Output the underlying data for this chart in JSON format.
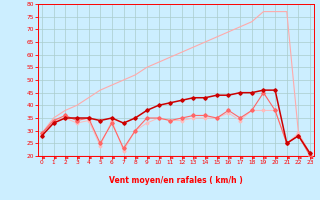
{
  "xlabel": "Vent moyen/en rafales ( km/h )",
  "bg_color": "#cceeff",
  "grid_color": "#aacccc",
  "x": [
    0,
    1,
    2,
    3,
    4,
    5,
    6,
    7,
    8,
    9,
    10,
    11,
    12,
    13,
    14,
    15,
    16,
    17,
    18,
    19,
    20,
    21,
    22,
    23
  ],
  "line_gust_y": [
    29,
    35,
    38,
    40,
    43,
    46,
    48,
    50,
    52,
    55,
    57,
    59,
    61,
    63,
    65,
    67,
    69,
    71,
    73,
    77,
    77,
    77,
    29,
    21
  ],
  "line_mean_y": [
    28,
    33,
    35,
    35,
    35,
    34,
    35,
    33,
    35,
    38,
    40,
    41,
    42,
    43,
    43,
    44,
    44,
    45,
    45,
    46,
    46,
    25,
    28,
    21
  ],
  "line_min_y": [
    29,
    34,
    36,
    34,
    35,
    25,
    33,
    23,
    30,
    35,
    35,
    34,
    35,
    36,
    36,
    35,
    38,
    35,
    38,
    45,
    38,
    25,
    28,
    20
  ],
  "line_extra_y": [
    29,
    34,
    35,
    33,
    34,
    24,
    34,
    22,
    30,
    33,
    35,
    34,
    34,
    35,
    35,
    35,
    37,
    34,
    38,
    38,
    38,
    25,
    29,
    20
  ],
  "line_gust_color": "#ffaaaa",
  "line_mean_color": "#cc0000",
  "line_min_color": "#ff6666",
  "line_extra_color": "#ffbbbb",
  "ylim_min": 20,
  "ylim_max": 80,
  "yticks": [
    20,
    25,
    30,
    35,
    40,
    45,
    50,
    55,
    60,
    65,
    70,
    75,
    80
  ],
  "xticks": [
    0,
    1,
    2,
    3,
    4,
    5,
    6,
    7,
    8,
    9,
    10,
    11,
    12,
    13,
    14,
    15,
    16,
    17,
    18,
    19,
    20,
    21,
    22,
    23
  ]
}
